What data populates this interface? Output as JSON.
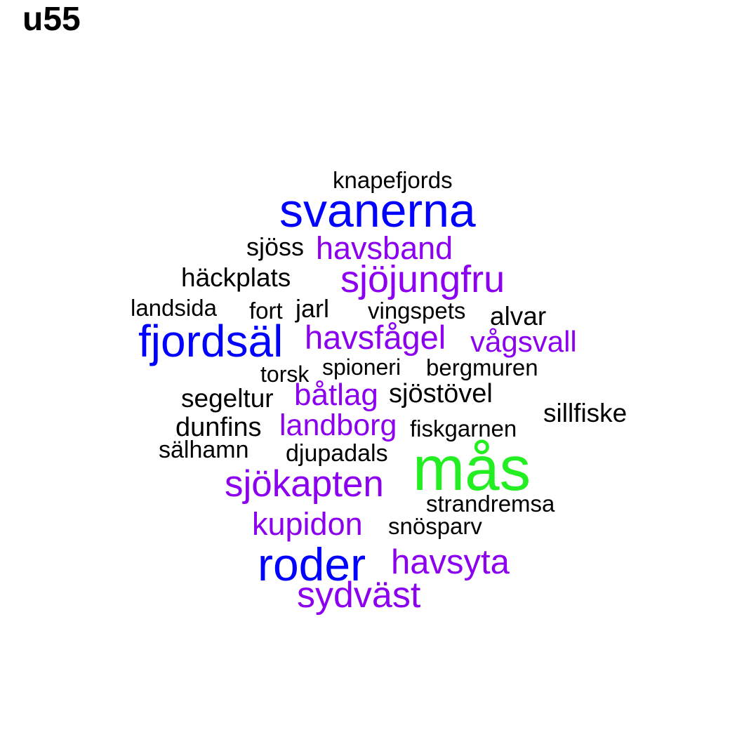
{
  "title": "u55",
  "colors": {
    "black": "#000000",
    "blue": "#0000ff",
    "purple": "#8b00ee",
    "green": "#22ee22"
  },
  "words": [
    {
      "text": "knapefjords",
      "color": "#000000"
    },
    {
      "text": "svanerna",
      "color": "#0000ff"
    },
    {
      "text": "sjöss",
      "color": "#000000"
    },
    {
      "text": "havsband",
      "color": "#8b00ee"
    },
    {
      "text": "häckplats",
      "color": "#000000"
    },
    {
      "text": "sjöjungfru",
      "color": "#8b00ee"
    },
    {
      "text": "landsida",
      "color": "#000000"
    },
    {
      "text": "fort",
      "color": "#000000"
    },
    {
      "text": "jarl",
      "color": "#000000"
    },
    {
      "text": "vingspets",
      "color": "#000000"
    },
    {
      "text": "alvar",
      "color": "#000000"
    },
    {
      "text": "fjordsäl",
      "color": "#0000ff"
    },
    {
      "text": "havsfågel",
      "color": "#8b00ee"
    },
    {
      "text": "vågsvall",
      "color": "#8b00ee"
    },
    {
      "text": "torsk",
      "color": "#000000"
    },
    {
      "text": "spioneri",
      "color": "#000000"
    },
    {
      "text": "bergmuren",
      "color": "#000000"
    },
    {
      "text": "segeltur",
      "color": "#000000"
    },
    {
      "text": "båtlag",
      "color": "#8b00ee"
    },
    {
      "text": "sjöstövel",
      "color": "#000000"
    },
    {
      "text": "sillfiske",
      "color": "#000000"
    },
    {
      "text": "dunfins",
      "color": "#000000"
    },
    {
      "text": "landborg",
      "color": "#8b00ee"
    },
    {
      "text": "fiskgarnen",
      "color": "#000000"
    },
    {
      "text": "sälhamn",
      "color": "#000000"
    },
    {
      "text": "djupadals",
      "color": "#000000"
    },
    {
      "text": "mås",
      "color": "#22ee22"
    },
    {
      "text": "sjökapten",
      "color": "#8b00ee"
    },
    {
      "text": "strandremsa",
      "color": "#000000"
    },
    {
      "text": "kupidon",
      "color": "#8b00ee"
    },
    {
      "text": "snösparv",
      "color": "#000000"
    },
    {
      "text": "roder",
      "color": "#0000ff"
    },
    {
      "text": "havsyta",
      "color": "#8b00ee"
    },
    {
      "text": "sydväst",
      "color": "#8b00ee"
    }
  ]
}
